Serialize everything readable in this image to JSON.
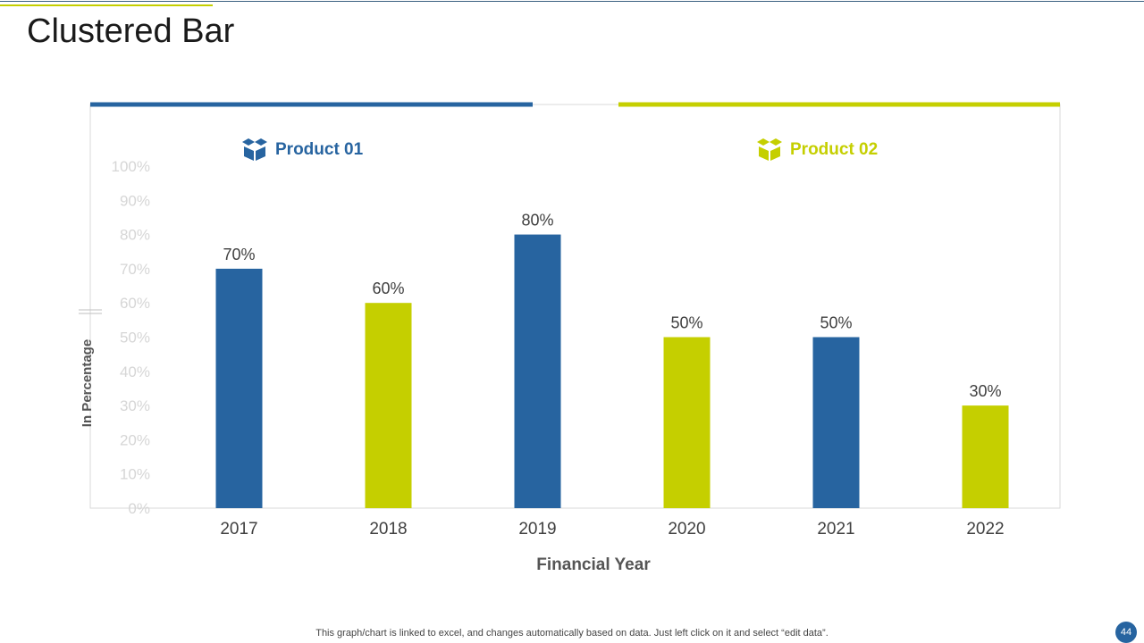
{
  "slide": {
    "title": "Clustered Bar",
    "footnote": "This graph/chart is linked to excel, and changes automatically based on data. Just left click on it and select “edit data”.",
    "page_number": "44"
  },
  "colors": {
    "product_01": "#2764a0",
    "product_02": "#c5cf00",
    "axis_tick": "#d6d6d6",
    "axis_label": "#555555",
    "value_label": "#404040",
    "frame": "#d9d9d9"
  },
  "chart_data": {
    "type": "bar",
    "title": "",
    "xlabel": "Financial Year",
    "ylabel": "In Percentage",
    "ylim": [
      0,
      100
    ],
    "yticks": [
      "0%",
      "10%",
      "20%",
      "30%",
      "40%",
      "50%",
      "60%",
      "70%",
      "80%",
      "90%",
      "100%"
    ],
    "categories": [
      "2017",
      "2018",
      "2019",
      "2020",
      "2021",
      "2022"
    ],
    "values": [
      70,
      60,
      80,
      50,
      50,
      30
    ],
    "value_labels": [
      "70%",
      "60%",
      "80%",
      "50%",
      "50%",
      "30%"
    ],
    "bar_series": [
      "Product 01",
      "Product 02",
      "Product 01",
      "Product 02",
      "Product 01",
      "Product 02"
    ],
    "legend": [
      {
        "name": "Product 01",
        "icon": "box-icon"
      },
      {
        "name": "Product 02",
        "icon": "box-icon"
      }
    ],
    "grid": false,
    "legend_position": "top"
  }
}
